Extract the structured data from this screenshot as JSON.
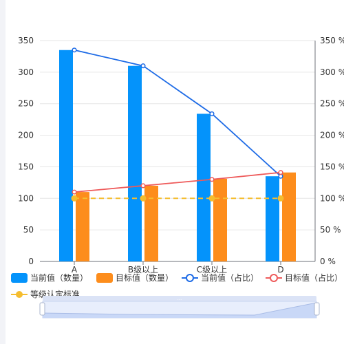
{
  "chart_data": {
    "type": "bar",
    "categories": [
      "A",
      "B级以上",
      "C级以上",
      "D"
    ],
    "y_left": {
      "min": 0,
      "max": 350,
      "ticks": [
        0,
        50,
        100,
        150,
        200,
        250,
        300,
        350
      ]
    },
    "y_right": {
      "min": 0,
      "max": 350,
      "ticks": [
        "0 %",
        "50 %",
        "100 %",
        "150 %",
        "200 %",
        "250 %",
        "300 %",
        "350 %"
      ]
    },
    "grid": true,
    "legend_position": "bottom",
    "series": [
      {
        "name": "当前值（数量）",
        "kind": "bar",
        "color": "#0493fb",
        "values": [
          335,
          310,
          234,
          135
        ]
      },
      {
        "name": "目标值（数量）",
        "kind": "bar",
        "color": "#fd8d1c",
        "values": [
          110,
          120,
          131,
          141
        ]
      },
      {
        "name": "当前值（占比）",
        "kind": "line",
        "color": "#1c6ae6",
        "values": [
          335,
          310,
          234,
          135
        ]
      },
      {
        "name": "目标值（占比）",
        "kind": "line",
        "color": "#ee5a5a",
        "values": [
          110,
          120,
          130,
          141
        ]
      },
      {
        "name": "等级认定标准",
        "kind": "dashed-line",
        "color": "#f5bd2f",
        "values": [
          100,
          100,
          100,
          100
        ]
      }
    ]
  },
  "datazoom": {
    "handle_label": "..."
  }
}
